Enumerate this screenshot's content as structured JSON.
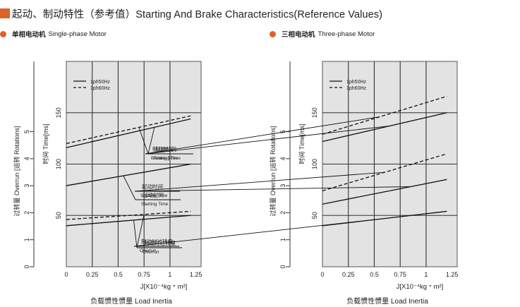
{
  "header": {
    "title": "起动、制动特性（参考值）Starting And Brake Characteristics(Reference Values)",
    "accent_color": "#e0602a"
  },
  "legend": {
    "solid_label": "1ph50Hz",
    "dashed_label": "1ph60Hz"
  },
  "axes": {
    "x_unit": "J[X10⁻⁴kg・m²]",
    "x_caption": "负载惯性惯量 Load Inertia",
    "y_time_label": "时间 Time[ms]",
    "y_overrun_label": "过转量 Overrun [运转 Rotations]",
    "x_ticks": [
      "0",
      "0.25",
      "0.5",
      "0.75",
      "1",
      "1.25"
    ],
    "time_ticks": [
      "50",
      "100",
      "150"
    ],
    "overrun_ticks": [
      "0",
      "1",
      "2",
      "3",
      "4",
      "5"
    ]
  },
  "annotation_labels": {
    "braking": {
      "cn": "制动时间",
      "en": "Braking Time"
    },
    "starting": {
      "cn": "起动时间",
      "en": "Starting Time"
    },
    "overrun": {
      "cn": "制动时过转量",
      "en": "Overrun"
    }
  },
  "chart_data": [
    {
      "type": "line",
      "subtitle_cn": "单相电动机",
      "subtitle_en": "Single-phase Motor",
      "x_range": [
        0,
        1.3
      ],
      "time_range": [
        0,
        200
      ],
      "overrun_range": [
        0,
        7.6
      ],
      "series": [
        {
          "name": "1ph50Hz",
          "group": "braking",
          "x": [
            0,
            1.2
          ],
          "y_time": [
            116,
            144
          ]
        },
        {
          "name": "1ph60Hz",
          "group": "braking",
          "x": [
            0,
            1.2
          ],
          "y_time": [
            120,
            147
          ]
        },
        {
          "name": "1ph50Hz",
          "group": "starting",
          "x": [
            0,
            1.2
          ],
          "y_time": [
            79,
            100
          ]
        },
        {
          "name": "1ph50Hz",
          "group": "overrun",
          "x": [
            0,
            1.2
          ],
          "y_time": [
            40,
            50
          ]
        },
        {
          "name": "1ph60Hz",
          "group": "overrun",
          "x": [
            0,
            1.2
          ],
          "y_time": [
            46,
            54
          ]
        }
      ]
    },
    {
      "type": "line",
      "subtitle_cn": "三相电动机",
      "subtitle_en": "Three-phase Motor",
      "x_range": [
        0,
        1.3
      ],
      "time_range": [
        0,
        200
      ],
      "overrun_range": [
        0,
        7.6
      ],
      "series": [
        {
          "name": "1ph50Hz",
          "group": "braking",
          "x": [
            0,
            1.2
          ],
          "y_time": [
            122,
            150
          ]
        },
        {
          "name": "1ph60Hz",
          "group": "braking",
          "x": [
            0,
            1.2
          ],
          "y_time": [
            129,
            166
          ]
        },
        {
          "name": "1ph50Hz",
          "group": "starting",
          "x": [
            0,
            1.2
          ],
          "y_time": [
            61,
            85
          ]
        },
        {
          "name": "1ph60Hz",
          "group": "starting",
          "x": [
            0,
            1.2
          ],
          "y_time": [
            74,
            110
          ]
        },
        {
          "name": "1ph50Hz",
          "group": "overrun",
          "x": [
            0,
            1.2
          ],
          "y_time": [
            40,
            54
          ]
        }
      ]
    }
  ]
}
